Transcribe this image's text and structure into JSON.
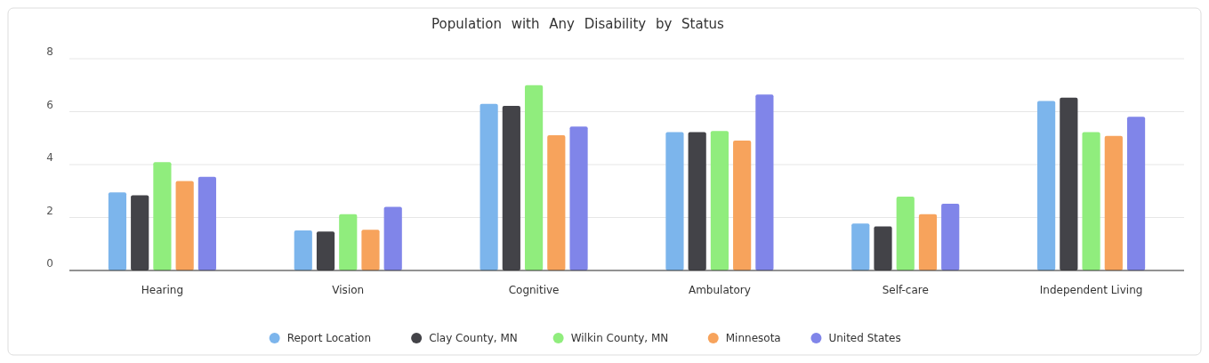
{
  "chart_data": {
    "type": "bar",
    "title": "Population with Any Disability by Status",
    "categories": [
      "Hearing",
      "Vision",
      "Cognitive",
      "Ambulatory",
      "Self-care",
      "Independent Living"
    ],
    "series": [
      {
        "name": "Report Location",
        "color": "#7cb5ec",
        "values": [
          2.95,
          1.51,
          6.29,
          5.23,
          1.77,
          6.4
        ]
      },
      {
        "name": "Clay County, MN",
        "color": "#434348",
        "values": [
          2.84,
          1.47,
          6.22,
          5.23,
          1.66,
          6.53
        ]
      },
      {
        "name": "Wilkin County, MN",
        "color": "#90ed7d",
        "values": [
          4.09,
          2.13,
          7.0,
          5.27,
          2.79,
          5.23
        ]
      },
      {
        "name": "Minnesota",
        "color": "#f7a35c",
        "values": [
          3.38,
          1.54,
          5.11,
          4.91,
          2.13,
          5.08
        ]
      },
      {
        "name": "United States",
        "color": "#8085e9",
        "values": [
          3.54,
          2.4,
          5.44,
          6.65,
          2.52,
          5.81
        ]
      }
    ],
    "ylim": [
      0,
      8
    ],
    "yticks": [
      0,
      2,
      4,
      6,
      8
    ],
    "grid": "y",
    "legend": "bottom"
  }
}
